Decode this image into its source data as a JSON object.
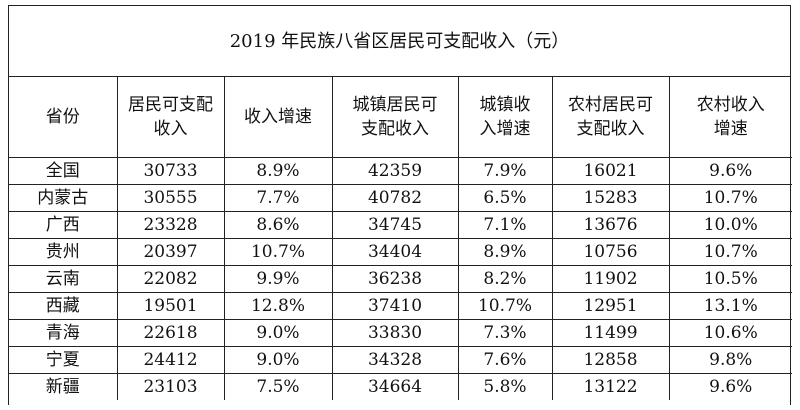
{
  "title": "2019 年民族八省区居民可支配收入（元）",
  "headers": [
    [
      "省份"
    ],
    [
      "居民可支配",
      "收入"
    ],
    [
      "收入增速"
    ],
    [
      "城镇居民可",
      "支配收入"
    ],
    [
      "城镇收",
      "入增速"
    ],
    [
      "农村居民可",
      "支配收入"
    ],
    [
      "农村收入",
      "增速"
    ]
  ],
  "rows": [
    [
      "全国",
      "30733",
      "8.9%",
      "42359",
      "7.9%",
      "16021",
      "9.6%"
    ],
    [
      "内蒙古",
      "30555",
      "7.7%",
      "40782",
      "6.5%",
      "15283",
      "10.7%"
    ],
    [
      "广西",
      "23328",
      "8.6%",
      "34745",
      "7.1%",
      "13676",
      "10.0%"
    ],
    [
      "贵州",
      "20397",
      "10.7%",
      "34404",
      "8.9%",
      "10756",
      "10.7%"
    ],
    [
      "云南",
      "22082",
      "9.9%",
      "36238",
      "8.2%",
      "11902",
      "10.5%"
    ],
    [
      "西藏",
      "19501",
      "12.8%",
      "37410",
      "10.7%",
      "12951",
      "13.1%"
    ],
    [
      "青海",
      "22618",
      "9.0%",
      "33830",
      "7.3%",
      "11499",
      "10.6%"
    ],
    [
      "宁夏",
      "24412",
      "9.0%",
      "34328",
      "7.6%",
      "12858",
      "9.8%"
    ],
    [
      "新疆",
      "23103",
      "7.5%",
      "34664",
      "5.8%",
      "13122",
      "9.6%"
    ]
  ]
}
